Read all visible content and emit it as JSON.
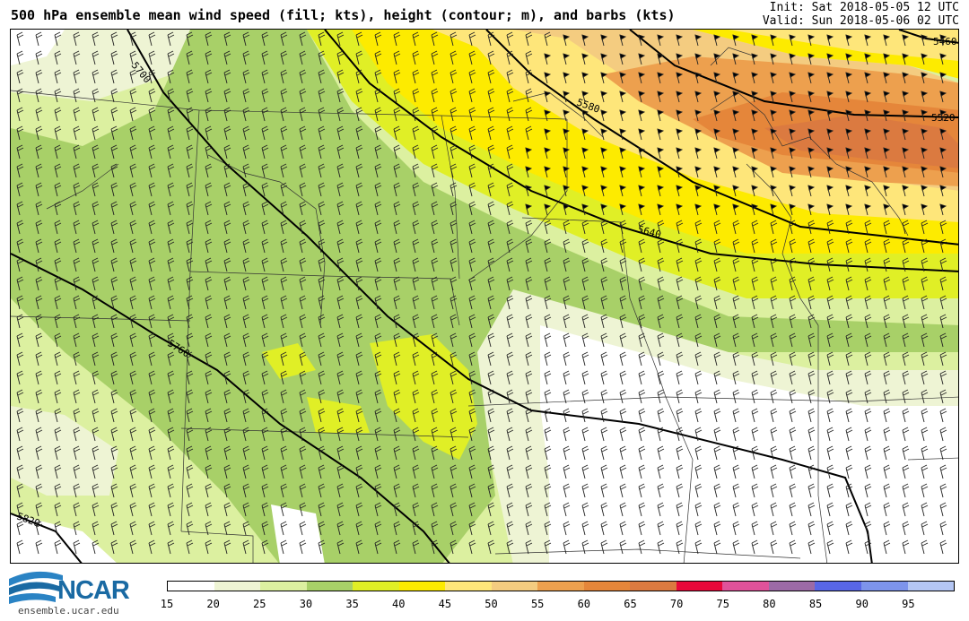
{
  "header": {
    "title": "500 hPa ensemble mean wind speed (fill; kts), height (contour; m), and barbs (kts)",
    "init": "Init: Sat 2018-05-05 12 UTC",
    "valid": "Valid: Sun 2018-05-06 02 UTC"
  },
  "colorbar": {
    "levels": [
      15,
      20,
      25,
      30,
      35,
      40,
      45,
      50,
      55,
      60,
      65,
      70,
      75,
      80,
      85,
      90,
      95
    ],
    "colors": [
      "#ffffff",
      "#eef4d4",
      "#dcf0a0",
      "#a8d068",
      "#e0ef26",
      "#fdeb00",
      "#fee67a",
      "#f4cc80",
      "#eda04e",
      "#e5863a",
      "#db7a40",
      "#e8083a",
      "#e0529a",
      "#9c6aa6",
      "#5866e6",
      "#7d94ec",
      "#b4c6f4"
    ]
  },
  "contours": {
    "labels": [
      "5460",
      "5520",
      "5580",
      "5640",
      "5700",
      "5760",
      "5820"
    ]
  },
  "logo": {
    "name": "NCAR",
    "url": "ensemble.ucar.edu"
  }
}
